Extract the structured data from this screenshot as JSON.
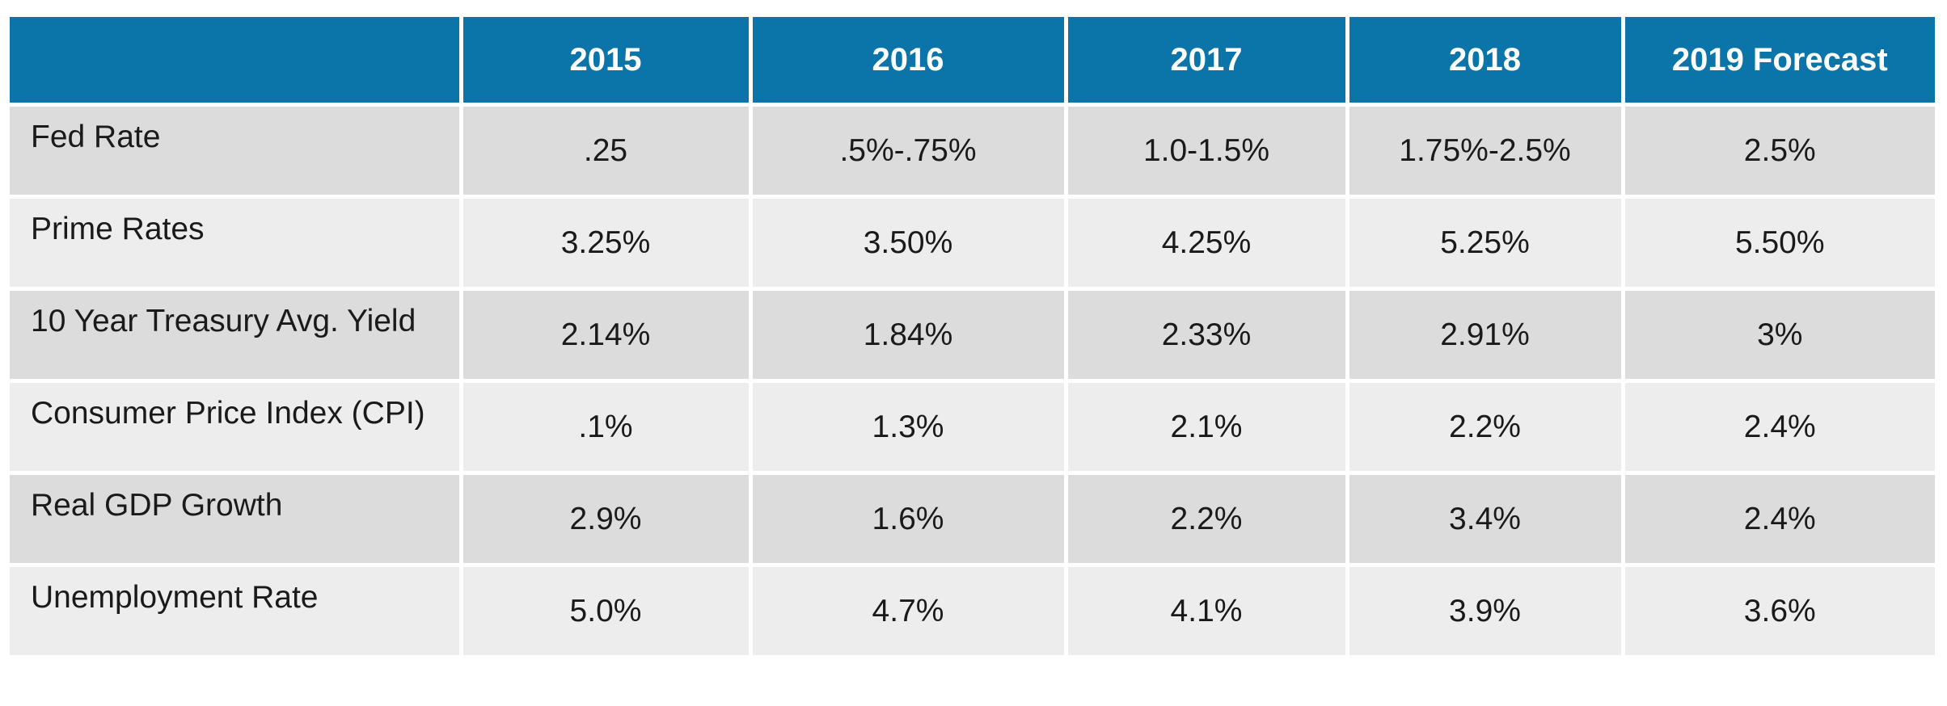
{
  "table": {
    "header": [
      "2015",
      "2016",
      "2017",
      "2018",
      "2019 Forecast"
    ],
    "rows": [
      [
        "Fed Rate",
        ".25",
        ".5%-.75%",
        "1.0-1.5%",
        "1.75%-2.5%",
        "2.5%"
      ],
      [
        "Prime Rates",
        "3.25%",
        "3.50%",
        "4.25%",
        "5.25%",
        "5.50%"
      ],
      [
        "10 Year Treasury Avg. Yield",
        "2.14%",
        "1.84%",
        "2.33%",
        "2.91%",
        "3%"
      ],
      [
        "Consumer Price Index (CPI)",
        ".1%",
        "1.3%",
        "2.1%",
        "2.2%",
        "2.4%"
      ],
      [
        "Real GDP Growth",
        "2.9%",
        "1.6%",
        "2.2%",
        "3.4%",
        "2.4%"
      ],
      [
        "Unemployment Rate",
        "5.0%",
        "4.7%",
        "4.1%",
        "3.9%",
        "3.6%"
      ]
    ]
  }
}
